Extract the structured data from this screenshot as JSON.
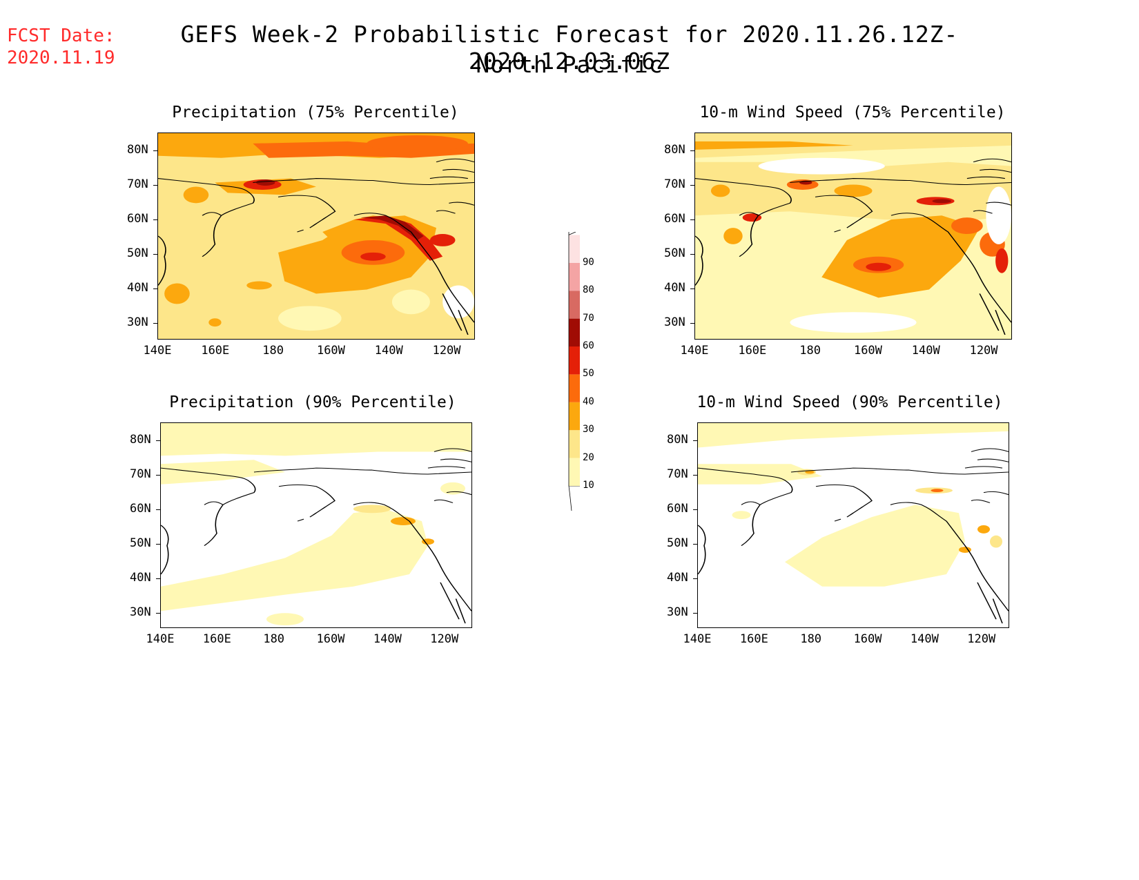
{
  "header": {
    "fcst_label": "FCST Date:",
    "fcst_date": "2020.11.19",
    "title": "GEFS Week-2 Probabilistic Forecast for 2020.11.26.12Z-2020.12.03.06Z",
    "region": "North Pacific"
  },
  "panels": [
    {
      "id": "precip75",
      "title": "Precipitation (75% Percentile)"
    },
    {
      "id": "wind75",
      "title": "10-m Wind Speed (75% Percentile)"
    },
    {
      "id": "precip90",
      "title": "Precipitation (90% Percentile)"
    },
    {
      "id": "wind90",
      "title": "10-m Wind Speed (90% Percentile)"
    }
  ],
  "axes": {
    "lon_labels": [
      "140E",
      "160E",
      "180",
      "160W",
      "140W",
      "120W"
    ],
    "lat_labels": [
      "80N",
      "70N",
      "60N",
      "50N",
      "40N",
      "30N"
    ]
  },
  "colorbar": {
    "levels": [
      "10",
      "20",
      "30",
      "40",
      "50",
      "60",
      "70",
      "80",
      "90"
    ],
    "colors": [
      "#fff8b4",
      "#fde68a",
      "#fca80e",
      "#fc6b0c",
      "#e42008",
      "#a00c04",
      "#d86a62",
      "#f4a4a4",
      "#fde2e2"
    ]
  }
}
